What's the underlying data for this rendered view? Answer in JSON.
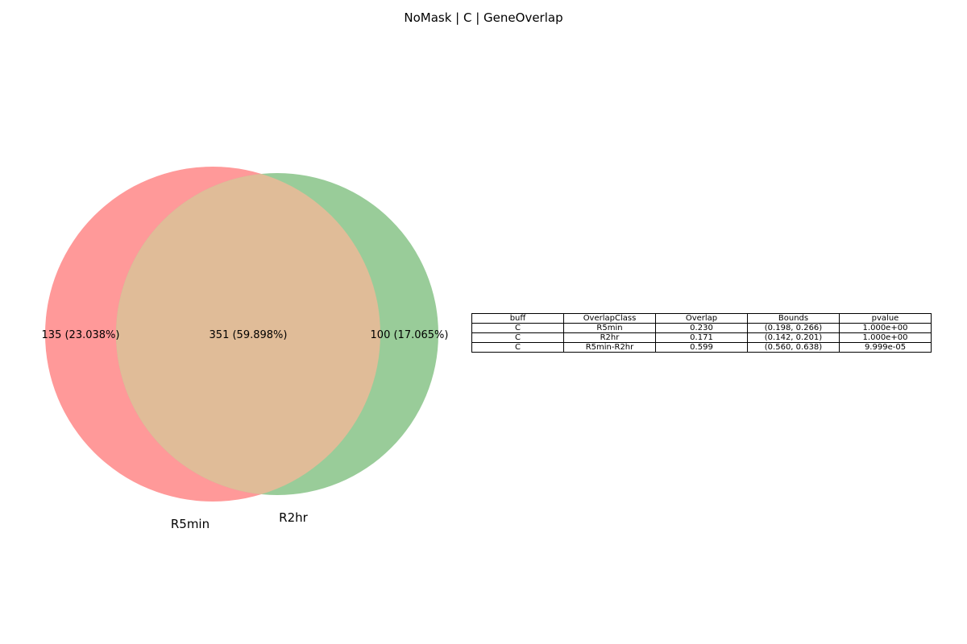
{
  "title": "NoMask | C | GeneOverlap",
  "venn": {
    "sets": [
      {
        "name": "R5min",
        "color": "#ff9999"
      },
      {
        "name": "R2hr",
        "color": "#99cc99"
      }
    ],
    "overlap_color": "#e0bc98",
    "regions": {
      "left_only": "135 (23.038%)",
      "both": "351 (59.898%)",
      "right_only": "100 (17.065%)"
    }
  },
  "table": {
    "columns": [
      "buff",
      "OverlapClass",
      "Overlap",
      "Bounds",
      "pvalue"
    ],
    "rows": [
      [
        "C",
        "R5min",
        "0.230",
        "(0.198, 0.266)",
        "1.000e+00"
      ],
      [
        "C",
        "R2hr",
        "0.171",
        "(0.142, 0.201)",
        "1.000e+00"
      ],
      [
        "C",
        "R5min-R2hr",
        "0.599",
        "(0.560, 0.638)",
        "9.999e-05"
      ]
    ]
  }
}
